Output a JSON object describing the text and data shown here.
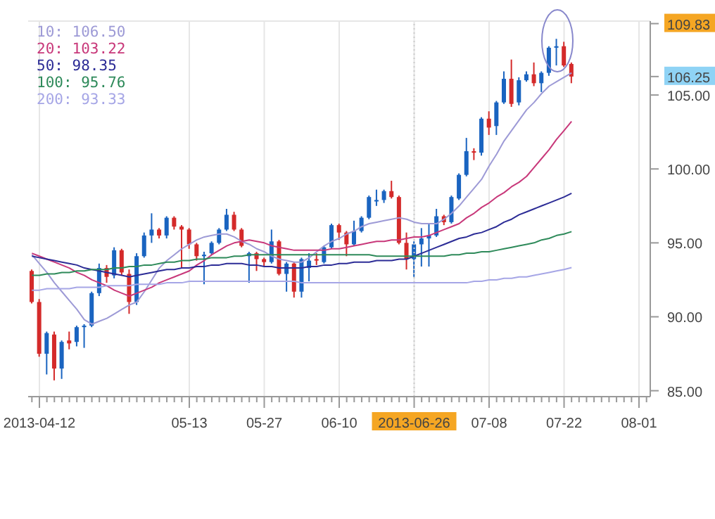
{
  "chart_data": {
    "type": "candlestick",
    "categories": [
      null,
      "2013-04-12",
      null,
      null,
      null,
      null,
      null,
      null,
      null,
      null,
      null,
      null,
      null,
      null,
      null,
      null,
      null,
      null,
      null,
      null,
      null,
      "05-13",
      null,
      null,
      null,
      null,
      null,
      null,
      null,
      null,
      null,
      "05-27",
      null,
      null,
      null,
      null,
      null,
      null,
      null,
      null,
      null,
      "06-10",
      null,
      null,
      null,
      null,
      null,
      null,
      null,
      null,
      null,
      "2013-06-26",
      null,
      null,
      null,
      null,
      null,
      null,
      null,
      null,
      null,
      "07-08",
      null,
      null,
      null,
      null,
      null,
      null,
      null,
      null,
      null,
      "07-22",
      null,
      null,
      null,
      null,
      null,
      null,
      null,
      null,
      null,
      "08-01",
      null
    ],
    "ohlc": [
      [
        93.1,
        93.2,
        90.9,
        91.0
      ],
      [
        91.0,
        91.2,
        87.3,
        87.5
      ],
      [
        87.5,
        89.0,
        86.1,
        88.9
      ],
      [
        88.8,
        89.0,
        85.7,
        86.5
      ],
      [
        86.5,
        88.4,
        85.8,
        88.3
      ],
      [
        88.4,
        89.0,
        87.8,
        88.2
      ],
      [
        88.3,
        89.4,
        88.0,
        89.3
      ],
      [
        89.3,
        89.5,
        87.9,
        89.4
      ],
      [
        89.4,
        91.7,
        89.3,
        91.6
      ],
      [
        91.6,
        93.6,
        91.4,
        93.3
      ],
      [
        93.3,
        93.5,
        92.3,
        92.7
      ],
      [
        92.8,
        94.7,
        92.6,
        94.5
      ],
      [
        94.5,
        94.6,
        92.8,
        93.0
      ],
      [
        92.9,
        93.2,
        90.2,
        91.0
      ],
      [
        91.0,
        94.3,
        90.8,
        94.1
      ],
      [
        94.1,
        95.7,
        94.0,
        95.5
      ],
      [
        95.5,
        97.0,
        95.0,
        95.9
      ],
      [
        95.9,
        96.0,
        95.3,
        95.5
      ],
      [
        95.5,
        96.8,
        95.3,
        96.7
      ],
      [
        96.7,
        96.8,
        95.9,
        96.1
      ],
      [
        96.1,
        96.2,
        93.3,
        95.9
      ],
      [
        95.9,
        96.0,
        94.6,
        94.9
      ],
      [
        94.9,
        95.0,
        93.8,
        94.1
      ],
      [
        94.1,
        94.4,
        92.2,
        94.2
      ],
      [
        94.3,
        95.1,
        94.2,
        95.0
      ],
      [
        95.0,
        96.0,
        94.9,
        95.9
      ],
      [
        95.9,
        97.3,
        95.8,
        96.9
      ],
      [
        96.9,
        97.1,
        95.8,
        95.9
      ],
      [
        95.9,
        96.0,
        94.7,
        94.8
      ],
      [
        94.1,
        94.4,
        92.3,
        94.3
      ],
      [
        94.3,
        94.4,
        93.1,
        93.9
      ],
      [
        93.9,
        94.0,
        93.4,
        93.7
      ],
      [
        93.7,
        95.9,
        93.6,
        95.1
      ],
      [
        95.1,
        95.2,
        92.8,
        92.9
      ],
      [
        92.9,
        93.7,
        91.7,
        93.6
      ],
      [
        93.6,
        93.7,
        91.3,
        91.7
      ],
      [
        91.7,
        94.0,
        91.3,
        93.9
      ],
      [
        93.3,
        94.3,
        92.4,
        93.8
      ],
      [
        93.9,
        94.3,
        93.5,
        93.8
      ],
      [
        93.7,
        94.8,
        93.6,
        94.7
      ],
      [
        94.7,
        96.3,
        94.6,
        96.2
      ],
      [
        96.2,
        96.3,
        95.2,
        95.7
      ],
      [
        95.7,
        95.8,
        94.1,
        94.9
      ],
      [
        94.9,
        96.5,
        94.8,
        95.8
      ],
      [
        95.8,
        96.8,
        95.7,
        96.7
      ],
      [
        96.7,
        98.2,
        96.6,
        98.1
      ],
      [
        97.8,
        98.6,
        97.5,
        97.9
      ],
      [
        97.9,
        98.6,
        97.7,
        98.5
      ],
      [
        98.5,
        99.2,
        98.0,
        98.1
      ],
      [
        98.1,
        98.2,
        94.9,
        95.0
      ],
      [
        95.0,
        95.7,
        93.2,
        93.9
      ],
      [
        93.9,
        95.1,
        92.7,
        94.9
      ],
      [
        94.9,
        96.0,
        93.4,
        95.3
      ],
      [
        95.3,
        96.3,
        93.4,
        95.5
      ],
      [
        95.5,
        97.3,
        95.4,
        96.8
      ],
      [
        96.8,
        96.9,
        96.2,
        96.4
      ],
      [
        96.4,
        98.2,
        96.3,
        98.1
      ],
      [
        98.0,
        99.7,
        97.9,
        99.6
      ],
      [
        99.6,
        102.1,
        99.5,
        101.2
      ],
      [
        101.2,
        101.4,
        100.6,
        101.1
      ],
      [
        101.1,
        103.5,
        100.9,
        103.4
      ],
      [
        103.4,
        103.9,
        102.3,
        102.8
      ],
      [
        102.9,
        104.6,
        102.3,
        104.5
      ],
      [
        104.5,
        106.6,
        104.4,
        106.1
      ],
      [
        106.1,
        107.4,
        104.2,
        104.4
      ],
      [
        104.5,
        106.2,
        104.3,
        106.0
      ],
      [
        106.0,
        106.6,
        105.9,
        106.4
      ],
      [
        106.4,
        107.2,
        105.6,
        105.8
      ],
      [
        105.8,
        106.6,
        105.2,
        106.5
      ],
      [
        106.5,
        108.3,
        106.3,
        108.2
      ],
      [
        108.2,
        108.8,
        107.0,
        108.3
      ],
      [
        108.3,
        108.6,
        106.9,
        107.0
      ],
      [
        107.1,
        107.2,
        105.8,
        106.25
      ],
      null,
      null,
      null,
      null,
      null,
      null,
      null,
      null,
      null,
      null
    ],
    "colors": [
      "#d42a2a",
      "#d42a2a",
      "#1a64c0",
      "#d42a2a",
      "#1a64c0",
      "#d42a2a",
      "#1a64c0",
      "#1a64c0",
      "#1a64c0",
      "#1a64c0",
      "#d42a2a",
      "#1a64c0",
      "#d42a2a",
      "#d42a2a",
      "#1a64c0",
      "#1a64c0",
      "#1a64c0",
      "#d42a2a",
      "#1a64c0",
      "#d42a2a",
      "#d42a2a",
      "#d42a2a",
      "#d42a2a",
      "#1a64c0",
      "#1a64c0",
      "#1a64c0",
      "#1a64c0",
      "#d42a2a",
      "#d42a2a",
      "#1a64c0",
      "#d42a2a",
      "#d42a2a",
      "#1a64c0",
      "#d42a2a",
      "#1a64c0",
      "#d42a2a",
      "#1a64c0",
      "#1a64c0",
      "#d42a2a",
      "#1a64c0",
      "#1a64c0",
      "#d42a2a",
      "#d42a2a",
      "#1a64c0",
      "#1a64c0",
      "#1a64c0",
      "#1a64c0",
      "#1a64c0",
      "#d42a2a",
      "#d42a2a",
      "#d42a2a",
      "#1a64c0",
      "#1a64c0",
      "#1a64c0",
      "#1a64c0",
      "#d42a2a",
      "#1a64c0",
      "#1a64c0",
      "#1a64c0",
      "#d42a2a",
      "#1a64c0",
      "#d42a2a",
      "#1a64c0",
      "#1a64c0",
      "#d42a2a",
      "#1a64c0",
      "#1a64c0",
      "#d42a2a",
      "#1a64c0",
      "#1a64c0",
      "#1a64c0",
      "#d42a2a",
      "#d42a2a",
      null,
      null,
      null,
      null,
      null,
      null,
      null,
      null,
      null,
      null
    ],
    "series": [
      {
        "type": "line",
        "name": "10: 106.50",
        "color": "#9d9ad6",
        "values": [
          94.2,
          93.6,
          93.0,
          92.3,
          91.7,
          91.1,
          90.5,
          89.8,
          89.5,
          89.7,
          89.9,
          90.2,
          90.5,
          90.8,
          91.0,
          91.7,
          92.5,
          93.3,
          93.8,
          94.2,
          94.6,
          94.9,
          95.2,
          95.4,
          95.5,
          95.6,
          95.6,
          95.4,
          95.1,
          94.9,
          94.6,
          94.4,
          94.1,
          93.9,
          93.8,
          93.7,
          93.7,
          94.0,
          94.4,
          94.8,
          95.1,
          95.3,
          95.6,
          95.8,
          96.1,
          96.3,
          96.4,
          96.5,
          96.6,
          96.7,
          96.6,
          96.4,
          96.3,
          96.3,
          96.3,
          96.6,
          97.0,
          97.5,
          98.1,
          98.7,
          99.3,
          100.2,
          101.0,
          101.9,
          102.6,
          103.3,
          104.0,
          104.5,
          105.1,
          105.6,
          105.9,
          106.2,
          106.5,
          null,
          null,
          null,
          null,
          null,
          null,
          null,
          null,
          null,
          null
        ]
      },
      {
        "type": "line",
        "name": "20: 103.22",
        "color": "#c8387a",
        "values": [
          94.3,
          94.1,
          93.9,
          93.7,
          93.5,
          93.3,
          93.0,
          92.8,
          92.5,
          92.3,
          92.1,
          91.8,
          91.6,
          91.4,
          91.6,
          91.8,
          92.0,
          92.3,
          92.5,
          92.7,
          92.9,
          93.1,
          93.5,
          93.8,
          94.2,
          94.5,
          94.8,
          95.0,
          95.1,
          95.2,
          95.1,
          95.0,
          94.8,
          94.7,
          94.6,
          94.5,
          94.5,
          94.5,
          94.5,
          94.5,
          94.6,
          94.6,
          94.7,
          94.8,
          94.9,
          95.0,
          95.1,
          95.1,
          95.2,
          95.2,
          95.3,
          95.4,
          95.4,
          95.5,
          95.7,
          95.9,
          96.1,
          96.3,
          96.7,
          97.0,
          97.4,
          97.7,
          98.1,
          98.4,
          98.8,
          99.1,
          99.5,
          100.1,
          100.7,
          101.3,
          102.0,
          102.6,
          103.22,
          null,
          null,
          null,
          null,
          null,
          null,
          null,
          null,
          null,
          null
        ]
      },
      {
        "type": "line",
        "name": "50: 98.35",
        "color": "#2c2c96",
        "values": [
          94.1,
          94.0,
          93.9,
          93.8,
          93.7,
          93.6,
          93.5,
          93.3,
          93.2,
          93.1,
          93.0,
          92.9,
          92.8,
          92.7,
          92.8,
          92.9,
          93.0,
          93.1,
          93.2,
          93.2,
          93.3,
          93.3,
          93.4,
          93.4,
          93.5,
          93.5,
          93.6,
          93.6,
          93.6,
          93.5,
          93.5,
          93.4,
          93.4,
          93.3,
          93.3,
          93.3,
          93.3,
          93.4,
          93.4,
          93.5,
          93.5,
          93.6,
          93.6,
          93.7,
          93.7,
          93.7,
          93.8,
          93.8,
          93.8,
          93.9,
          93.9,
          94.1,
          94.3,
          94.5,
          94.7,
          94.9,
          95.1,
          95.3,
          95.4,
          95.6,
          95.7,
          95.9,
          96.1,
          96.4,
          96.6,
          96.9,
          97.1,
          97.3,
          97.5,
          97.7,
          97.9,
          98.1,
          98.35,
          null,
          null,
          null,
          null,
          null,
          null,
          null,
          null,
          null,
          null
        ]
      },
      {
        "type": "line",
        "name": "100: 95.76",
        "color": "#2e8a5a",
        "values": [
          92.8,
          92.8,
          92.9,
          92.9,
          93.0,
          93.0,
          93.1,
          93.1,
          93.2,
          93.2,
          93.2,
          93.3,
          93.3,
          93.4,
          93.4,
          93.5,
          93.5,
          93.6,
          93.7,
          93.7,
          93.8,
          93.8,
          93.9,
          93.9,
          94.0,
          94.0,
          94.0,
          94.1,
          94.1,
          94.2,
          94.2,
          94.2,
          94.2,
          94.2,
          94.2,
          94.2,
          94.2,
          94.2,
          94.2,
          94.2,
          94.2,
          94.2,
          94.2,
          94.2,
          94.2,
          94.2,
          94.1,
          94.1,
          94.1,
          94.1,
          94.1,
          94.1,
          94.1,
          94.1,
          94.1,
          94.1,
          94.2,
          94.2,
          94.3,
          94.3,
          94.4,
          94.4,
          94.5,
          94.6,
          94.7,
          94.8,
          94.9,
          95.0,
          95.2,
          95.3,
          95.5,
          95.6,
          95.76,
          null,
          null,
          null,
          null,
          null,
          null,
          null,
          null,
          null,
          null
        ]
      },
      {
        "type": "line",
        "name": "200: 93.33",
        "color": "#a6a6e6",
        "values": [
          91.8,
          91.8,
          91.9,
          91.9,
          91.9,
          91.9,
          92.0,
          92.0,
          92.0,
          92.0,
          92.1,
          92.1,
          92.1,
          92.1,
          92.2,
          92.2,
          92.2,
          92.2,
          92.3,
          92.3,
          92.3,
          92.4,
          92.4,
          92.4,
          92.4,
          92.4,
          92.4,
          92.4,
          92.4,
          92.4,
          92.4,
          92.4,
          92.4,
          92.4,
          92.4,
          92.4,
          92.3,
          92.3,
          92.3,
          92.3,
          92.3,
          92.3,
          92.3,
          92.3,
          92.3,
          92.3,
          92.3,
          92.3,
          92.3,
          92.3,
          92.3,
          92.3,
          92.3,
          92.3,
          92.3,
          92.3,
          92.3,
          92.3,
          92.3,
          92.4,
          92.4,
          92.5,
          92.5,
          92.6,
          92.6,
          92.7,
          92.7,
          92.8,
          92.9,
          93.0,
          93.1,
          93.2,
          93.33,
          null,
          null,
          null,
          null,
          null,
          null,
          null,
          null,
          null,
          null
        ]
      }
    ],
    "ylim": [
      84.6,
      110.0
    ],
    "yticks": [
      {
        "value": 85,
        "label": "85.00"
      },
      {
        "value": 90,
        "label": "90.00"
      },
      {
        "value": 95,
        "label": "95.00"
      },
      {
        "value": 100,
        "label": "100.00"
      },
      {
        "value": 105,
        "label": "105.00"
      },
      {
        "value": 106.25,
        "label": "106.25"
      },
      {
        "value": 109.83,
        "label": "109.83"
      }
    ],
    "ref_lines": [
      {
        "axis": "x",
        "value": "2013-06-26",
        "color": "#cccccc",
        "line_style": "dotted"
      }
    ],
    "grid": true,
    "legend": "top left",
    "marker": "none",
    "line_style": "solid"
  }
}
